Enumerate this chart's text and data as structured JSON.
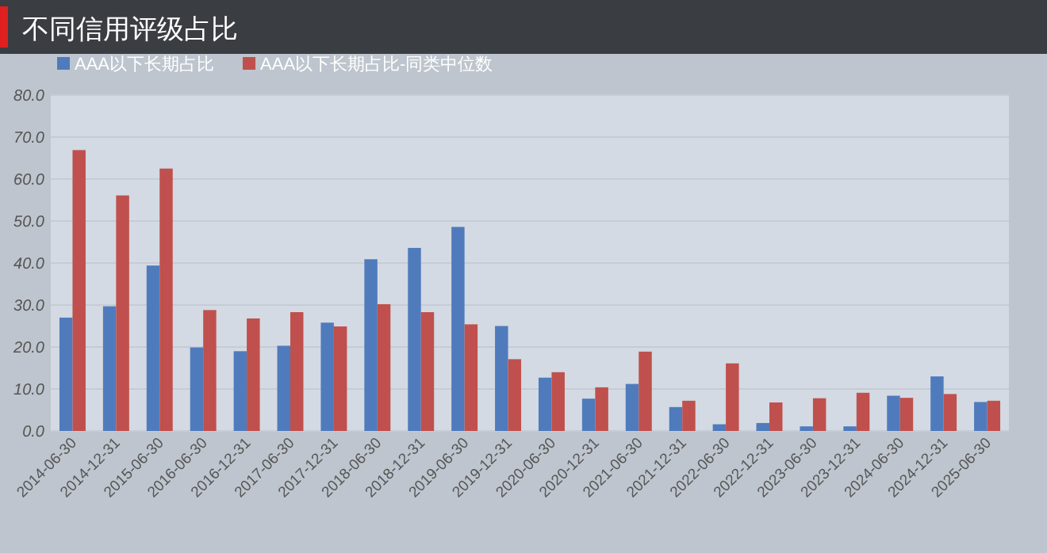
{
  "chart_data": {
    "type": "bar",
    "title": "不同信用评级占比",
    "categories": [
      "2014-06-30",
      "2014-12-31",
      "2015-06-30",
      "2016-06-30",
      "2016-12-31",
      "2017-06-30",
      "2017-12-31",
      "2018-06-30",
      "2018-12-31",
      "2019-06-30",
      "2019-12-31",
      "2020-06-30",
      "2020-12-31",
      "2021-06-30",
      "2021-12-31",
      "2022-06-30",
      "2022-12-31",
      "2023-06-30",
      "2023-12-31",
      "2024-06-30",
      "2024-12-31",
      "2025-06-30"
    ],
    "series": [
      {
        "name": "AAA以下长期占比",
        "color": "#4f7bbd",
        "values": [
          27.0,
          29.7,
          39.4,
          19.9,
          19.0,
          20.3,
          25.8,
          40.9,
          43.6,
          48.6,
          25.0,
          12.7,
          7.7,
          11.2,
          5.7,
          1.6,
          1.9,
          1.1,
          1.1,
          8.4,
          13.0,
          6.9
        ]
      },
      {
        "name": "AAA以下长期占比-同类中位数",
        "color": "#c0504d",
        "values": [
          66.9,
          56.1,
          62.5,
          28.8,
          26.8,
          28.3,
          24.9,
          30.2,
          28.3,
          25.4,
          17.1,
          14.0,
          10.4,
          18.9,
          7.2,
          16.1,
          6.8,
          7.8,
          9.1,
          7.9,
          8.8,
          7.2
        ]
      }
    ],
    "ylim": [
      0,
      80
    ],
    "yticks": [
      {
        "value": 0,
        "label": "0.0"
      },
      {
        "value": 10,
        "label": "10.0"
      },
      {
        "value": 20,
        "label": "20.0"
      },
      {
        "value": 30,
        "label": "30.0"
      },
      {
        "value": 40,
        "label": "40.0"
      },
      {
        "value": 50,
        "label": "50.0"
      },
      {
        "value": 60,
        "label": "60.0"
      },
      {
        "value": 70,
        "label": "70.0"
      },
      {
        "value": 80,
        "label": "80.0"
      }
    ],
    "grid": "y",
    "legend": "top left"
  }
}
